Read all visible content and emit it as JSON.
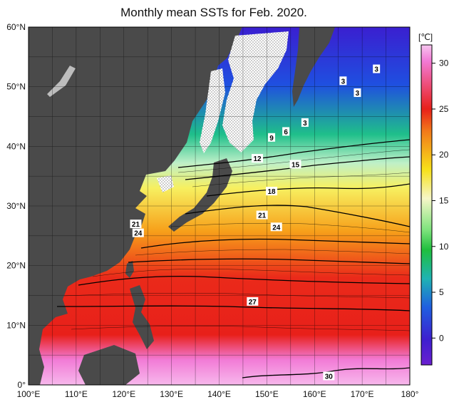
{
  "title": "Monthly mean SSTs for Feb. 2020.",
  "colorbar": {
    "unit": "[℃]",
    "ticks": [
      "30",
      "25",
      "20",
      "15",
      "10",
      "5",
      "0"
    ],
    "stops": [
      {
        "c": "#f7c6f0",
        "o": 0
      },
      {
        "c": "#f27bd6",
        "o": 0.05
      },
      {
        "c": "#e8201a",
        "o": 0.2
      },
      {
        "c": "#f27a1a",
        "o": 0.27
      },
      {
        "c": "#f7e11a",
        "o": 0.39
      },
      {
        "c": "#f6f6c8",
        "o": 0.48
      },
      {
        "c": "#7be27b",
        "o": 0.58
      },
      {
        "c": "#1fbf3d",
        "o": 0.64
      },
      {
        "c": "#1fb3b3",
        "o": 0.73
      },
      {
        "c": "#1f5fe0",
        "o": 0.82
      },
      {
        "c": "#3d1fcf",
        "o": 0.92
      },
      {
        "c": "#6a1fd0",
        "o": 1
      }
    ]
  },
  "axes": {
    "lat_labels": [
      "60°N",
      "50°N",
      "40°N",
      "30°N",
      "20°N",
      "10°N",
      "0°"
    ],
    "lon_labels": [
      "100°E",
      "110°E",
      "120°E",
      "130°E",
      "140°E",
      "150°E",
      "160°E",
      "170°E",
      "180°"
    ]
  },
  "contour_labels": [
    {
      "text": "3",
      "lon": 173,
      "lat": 53
    },
    {
      "text": "3",
      "lon": 166,
      "lat": 51
    },
    {
      "text": "3",
      "lon": 169,
      "lat": 49
    },
    {
      "text": "3",
      "lon": 158,
      "lat": 44
    },
    {
      "text": "6",
      "lon": 154,
      "lat": 42.5
    },
    {
      "text": "9",
      "lon": 151,
      "lat": 41.5
    },
    {
      "text": "12",
      "lon": 148,
      "lat": 38
    },
    {
      "text": "15",
      "lon": 156,
      "lat": 37
    },
    {
      "text": "18",
      "lon": 151,
      "lat": 32.5
    },
    {
      "text": "21",
      "lon": 149,
      "lat": 28.5
    },
    {
      "text": "24",
      "lon": 152,
      "lat": 26.5
    },
    {
      "text": "21",
      "lon": 122.5,
      "lat": 27
    },
    {
      "text": "24",
      "lon": 123,
      "lat": 25.5
    },
    {
      "text": "27",
      "lon": 147,
      "lat": 14
    },
    {
      "text": "30",
      "lon": 163,
      "lat": 1.5
    }
  ]
}
